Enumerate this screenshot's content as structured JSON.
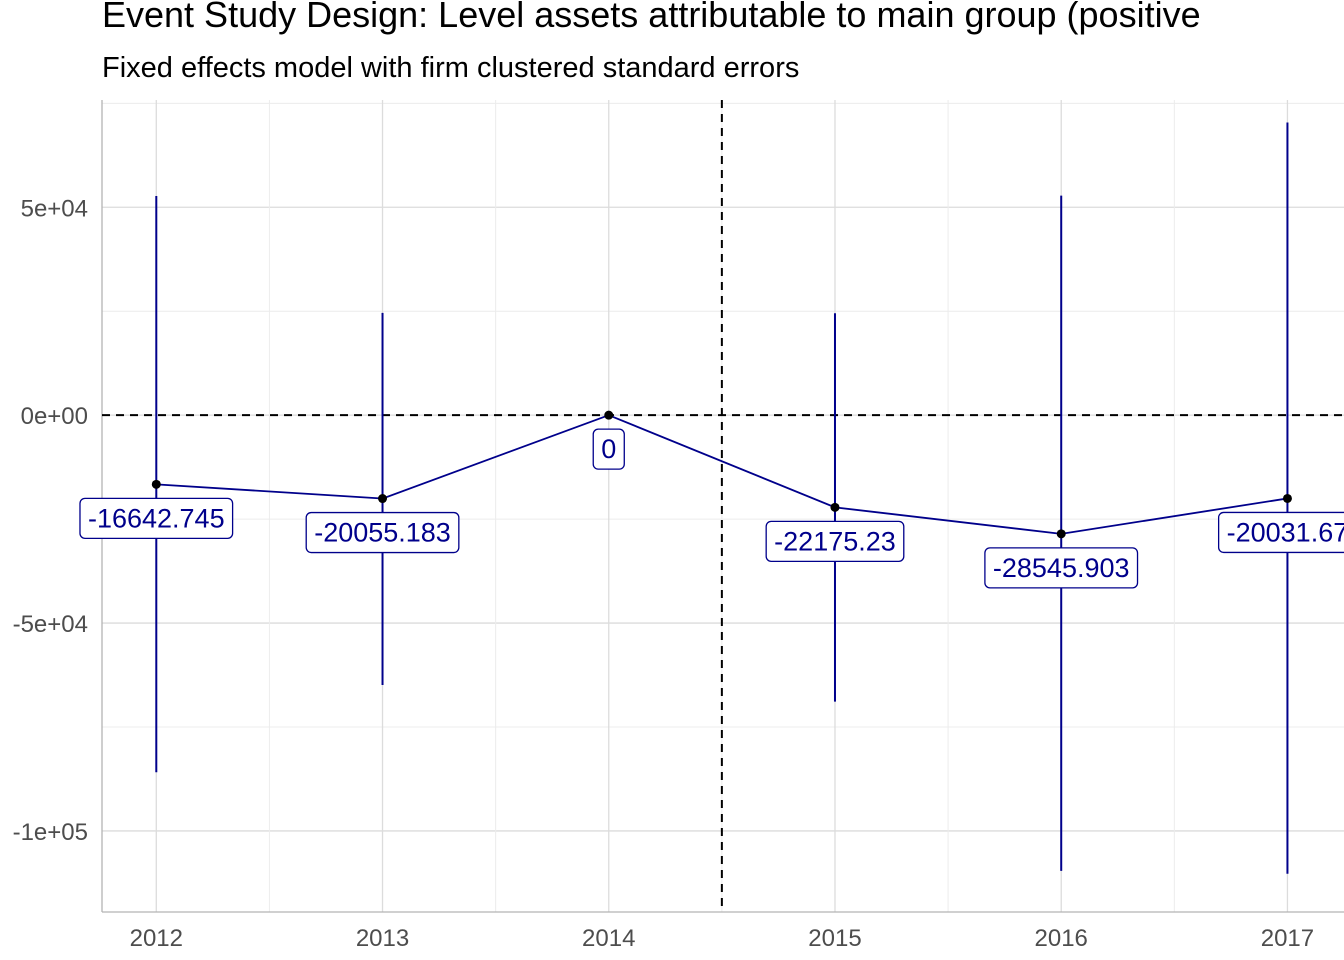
{
  "chart_data": {
    "type": "line",
    "title": "Event Study Design: Level assets attributable to main group (positive",
    "subtitle": "Fixed effects model with firm clustered standard errors",
    "xlabel": "",
    "ylabel": "",
    "x": [
      2012,
      2013,
      2014,
      2015,
      2016,
      2017
    ],
    "x_tick_labels": [
      "2012",
      "2013",
      "2014",
      "2015",
      "2016",
      "2017"
    ],
    "y_tick_values": [
      50000,
      0,
      -50000,
      -100000
    ],
    "y_tick_labels": [
      "5e+04",
      "0e+00",
      "-5e+04",
      "-1e+05"
    ],
    "xlim": [
      2011.76,
      2017.25
    ],
    "ylim": [
      -119500,
      75800
    ],
    "series": [
      {
        "estimate": [
          -16642.745,
          -20055.183,
          0,
          -22175.23,
          -28545.903,
          -20031.67
        ],
        "ci_low": [
          -85900,
          -64900,
          0,
          -68900,
          -109600,
          -110300
        ],
        "ci_high": [
          52700,
          24600,
          0,
          24500,
          52800,
          70400
        ],
        "labels": [
          "-16642.745",
          "-20055.183",
          "0",
          "-22175.23",
          "-28545.903",
          "-20031.67"
        ],
        "color": "#00008b"
      }
    ],
    "reference_lines": {
      "horizontal_y": 0,
      "vertical_x": 2014.5,
      "style": "dashed"
    },
    "grid": true,
    "legend": "none"
  }
}
